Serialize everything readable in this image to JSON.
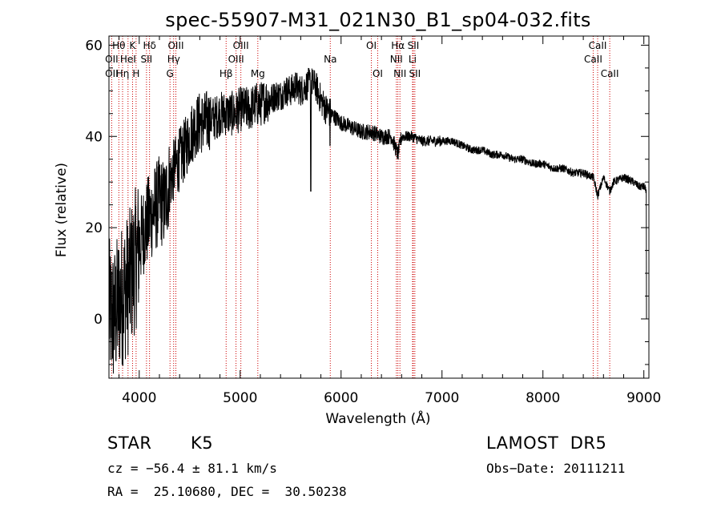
{
  "chart_data": {
    "type": "line",
    "title": "spec-55907-M31_021N30_B1_sp04-032.fits",
    "xlabel": "Wavelength (Å)",
    "ylabel": "Flux (relative)",
    "xlim": [
      3700,
      9050
    ],
    "ylim": [
      -13,
      62
    ],
    "x_ticks": [
      4000,
      5000,
      6000,
      7000,
      8000,
      9000
    ],
    "y_ticks": [
      0,
      20,
      40,
      60
    ],
    "grid": false,
    "series": [
      {
        "x": [
          3700,
          3750,
          3800,
          3850,
          3900,
          3950,
          4000,
          4050,
          4100,
          4150,
          4200,
          4250,
          4300,
          4350,
          4400,
          4450,
          4500,
          4550,
          4600,
          4650,
          4700,
          4750,
          4800,
          4850,
          4900,
          4950,
          5000,
          5050,
          5100,
          5150,
          5200,
          5250,
          5300,
          5350,
          5400,
          5450,
          5500,
          5550,
          5600,
          5650,
          5700,
          5750,
          5800,
          5850,
          5900,
          5950,
          6000,
          6100,
          6200,
          6300,
          6400,
          6500,
          6563,
          6600,
          6700,
          6800,
          6900,
          7000,
          7100,
          7200,
          7300,
          7400,
          7500,
          7600,
          7700,
          7800,
          7900,
          8000,
          8100,
          8200,
          8300,
          8400,
          8500,
          8542,
          8600,
          8662,
          8700,
          8800,
          8900,
          8950,
          9000,
          9030
        ],
        "y": [
          2,
          0,
          4,
          6,
          8,
          12,
          16,
          20,
          22,
          24,
          26,
          25,
          30,
          33,
          35,
          37,
          40,
          42,
          43,
          43,
          44,
          44,
          45,
          45,
          45,
          45,
          46,
          46,
          46,
          47,
          47,
          48,
          48,
          49,
          49,
          50,
          50,
          51,
          50,
          51,
          52,
          51,
          48,
          46,
          45,
          44,
          43,
          42,
          41,
          41,
          40,
          40,
          36,
          40,
          40,
          39,
          39,
          39,
          39,
          38,
          37,
          37,
          36,
          36,
          35,
          35,
          34,
          34,
          33,
          33,
          32,
          32,
          31,
          27,
          31,
          28,
          30,
          31,
          30,
          29,
          29,
          28
        ]
      }
    ],
    "line_labels": [
      {
        "text": "Hθ",
        "wl": 3798
      },
      {
        "text": "K",
        "wl": 3934
      },
      {
        "text": "Hδ",
        "wl": 4102
      },
      {
        "text": "OII",
        "wl": 3727
      },
      {
        "text": "HeI",
        "wl": 3889
      },
      {
        "text": "SII",
        "wl": 4072
      },
      {
        "text": "Hγ",
        "wl": 4341
      },
      {
        "text": "OII",
        "wl": 3727
      },
      {
        "text": "Hη",
        "wl": 3835
      },
      {
        "text": "H",
        "wl": 3969
      },
      {
        "text": "G",
        "wl": 4305
      },
      {
        "text": "OIII",
        "wl": 4363
      },
      {
        "text": "OIII",
        "wl": 5007
      },
      {
        "text": "OIII",
        "wl": 4959
      },
      {
        "text": "Hβ",
        "wl": 4861
      },
      {
        "text": "Mg",
        "wl": 5175
      },
      {
        "text": "Na",
        "wl": 5893
      },
      {
        "text": "OI",
        "wl": 6300
      },
      {
        "text": "OI",
        "wl": 6363
      },
      {
        "text": "Hα",
        "wl": 6563
      },
      {
        "text": "SII",
        "wl": 6716
      },
      {
        "text": "NII",
        "wl": 6548
      },
      {
        "text": "Li",
        "wl": 6708
      },
      {
        "text": "NII",
        "wl": 6583
      },
      {
        "text": "SII",
        "wl": 6731
      },
      {
        "text": "CaII",
        "wl": 8542
      },
      {
        "text": "CaII",
        "wl": 8498
      },
      {
        "text": "CaII",
        "wl": 8662
      }
    ],
    "line_color": "#000000",
    "marker_color": "#cc0000"
  },
  "info": {
    "class_label": "STAR",
    "subclass": "K5",
    "survey": "LAMOST  DR5",
    "redshift": "cz = −56.4 ± 81.1 km/s",
    "obs_date": "Obs−Date: 20111211",
    "coords": "RA =  25.10680, DEC =  30.50238"
  }
}
